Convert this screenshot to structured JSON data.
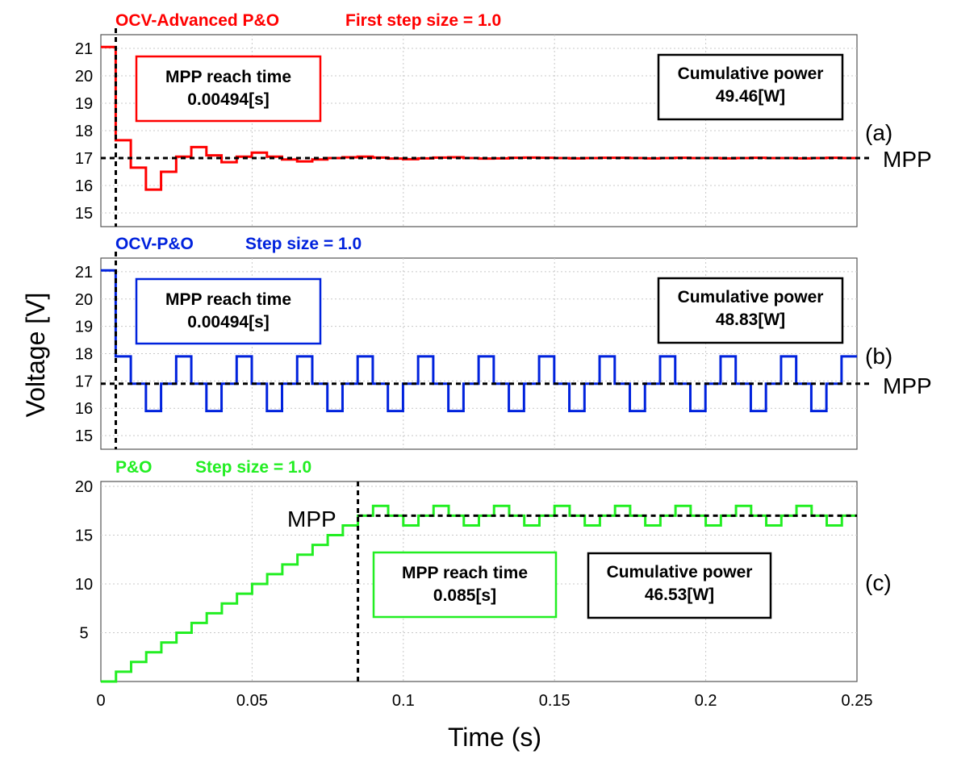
{
  "y_axis_label": "Voltage [V]",
  "x_axis_label": "Time (s)",
  "mpp_label": "MPP",
  "box_labels": {
    "reach": "MPP reach time",
    "power": "Cumulative power"
  },
  "x_ticks": [
    "0",
    "0.05",
    "0.1",
    "0.15",
    "0.2",
    "0.25"
  ],
  "chart_data": [
    {
      "type": "line",
      "panel_label": "(a)",
      "method": "OCV-Advanced P&O",
      "step_label": "First step size = 1.0",
      "color": "#ff0000",
      "xlim": [
        0,
        0.25
      ],
      "ylim": [
        14.5,
        21.5
      ],
      "y_ticks": [
        15,
        16,
        17,
        18,
        19,
        20,
        21
      ],
      "mpp_voltage": 17,
      "mpp_reach_time_value": 0.00494,
      "mpp_reach_time": "0.00494[s]",
      "cumulative_power": "49.46[W]",
      "series": [
        {
          "x": [
            0,
            0.0049,
            0.0099,
            0.0149,
            0.0199,
            0.0249,
            0.0299,
            0.0349,
            0.0399,
            0.0449,
            0.0499,
            0.0549,
            0.0599,
            0.0649,
            0.0699,
            0.0749,
            0.0799,
            0.0849,
            0.0899,
            0.0949,
            0.0999,
            0.1049,
            0.1099,
            0.1149,
            0.1199,
            0.1249,
            0.1299,
            0.1349,
            0.1399,
            0.1449,
            0.1499,
            0.1549,
            0.1599,
            0.1649,
            0.1699,
            0.1749,
            0.1799,
            0.1849,
            0.1899,
            0.1949,
            0.1999,
            0.2049,
            0.2099,
            0.2149,
            0.2199,
            0.2249,
            0.2299,
            0.2349,
            0.2399,
            0.2449
          ],
          "values": [
            21.05,
            17.65,
            16.65,
            15.85,
            16.5,
            17.05,
            17.4,
            17.1,
            16.85,
            17.05,
            17.2,
            17.05,
            16.95,
            16.88,
            16.95,
            17.0,
            17.03,
            17.05,
            17.02,
            16.98,
            16.96,
            16.99,
            17.02,
            17.03,
            17.0,
            16.98,
            16.99,
            17.01,
            17.02,
            17.01,
            17.0,
            16.99,
            17.0,
            17.01,
            17.01,
            17.0,
            16.99,
            17.0,
            17.01,
            17.0,
            17.0,
            16.99,
            17.0,
            17.01,
            17.0,
            17.0,
            16.99,
            17.0,
            17.01,
            17.0
          ]
        }
      ]
    },
    {
      "type": "line",
      "panel_label": "(b)",
      "method": "OCV-P&O",
      "step_label": "Step size = 1.0",
      "color": "#0022dd",
      "xlim": [
        0,
        0.25
      ],
      "ylim": [
        14.5,
        21.5
      ],
      "y_ticks": [
        15,
        16,
        17,
        18,
        19,
        20,
        21
      ],
      "mpp_voltage": 16.9,
      "mpp_reach_time_value": 0.00494,
      "mpp_reach_time": "0.00494[s]",
      "cumulative_power": "48.83[W]",
      "series": [
        {
          "x": [
            0,
            0.0049,
            0.0099,
            0.0149,
            0.0199,
            0.0249,
            0.0299,
            0.0349,
            0.0399,
            0.0449,
            0.0499,
            0.0549,
            0.0599,
            0.0649,
            0.0699,
            0.0749,
            0.0799,
            0.0849,
            0.0899,
            0.0949,
            0.0999,
            0.1049,
            0.1099,
            0.1149,
            0.1199,
            0.1249,
            0.1299,
            0.1349,
            0.1399,
            0.1449,
            0.1499,
            0.1549,
            0.1599,
            0.1649,
            0.1699,
            0.1749,
            0.1799,
            0.1849,
            0.1899,
            0.1949,
            0.1999,
            0.2049,
            0.2099,
            0.2149,
            0.2199,
            0.2249,
            0.2299,
            0.2349,
            0.2399,
            0.2449
          ],
          "values": [
            21.05,
            17.9,
            16.9,
            15.9,
            16.9,
            17.9,
            16.9,
            15.9,
            16.9,
            17.9,
            16.9,
            15.9,
            16.9,
            17.9,
            16.9,
            15.9,
            16.9,
            17.9,
            16.9,
            15.9,
            16.9,
            17.9,
            16.9,
            15.9,
            16.9,
            17.9,
            16.9,
            15.9,
            16.9,
            17.9,
            16.9,
            15.9,
            16.9,
            17.9,
            16.9,
            15.9,
            16.9,
            17.9,
            16.9,
            15.9,
            16.9,
            17.9,
            16.9,
            15.9,
            16.9,
            17.9,
            16.9,
            15.9,
            16.9,
            17.9
          ]
        }
      ]
    },
    {
      "type": "line",
      "panel_label": "(c)",
      "method": "P&O",
      "step_label": "Step size = 1.0",
      "color": "#22ee22",
      "xlim": [
        0,
        0.25
      ],
      "ylim": [
        0,
        20.5
      ],
      "y_ticks": [
        5,
        10,
        15,
        20
      ],
      "mpp_voltage": 17,
      "mpp_reach_time_value": 0.085,
      "mpp_reach_time": "0.085[s]",
      "cumulative_power": "46.53[W]",
      "series": [
        {
          "x": [
            0,
            0.005,
            0.01,
            0.015,
            0.02,
            0.025,
            0.03,
            0.035,
            0.04,
            0.045,
            0.05,
            0.055,
            0.06,
            0.065,
            0.07,
            0.075,
            0.08,
            0.085,
            0.09,
            0.095,
            0.1,
            0.105,
            0.11,
            0.115,
            0.12,
            0.125,
            0.13,
            0.135,
            0.14,
            0.145,
            0.15,
            0.155,
            0.16,
            0.165,
            0.17,
            0.175,
            0.18,
            0.185,
            0.19,
            0.195,
            0.2,
            0.205,
            0.21,
            0.215,
            0.22,
            0.225,
            0.23,
            0.235,
            0.24,
            0.245
          ],
          "values": [
            0,
            1,
            2,
            3,
            4,
            5,
            6,
            7,
            8,
            9,
            10,
            11,
            12,
            13,
            14,
            15,
            16,
            17,
            18,
            17,
            16,
            17,
            18,
            17,
            16,
            17,
            18,
            17,
            16,
            17,
            18,
            17,
            16,
            17,
            18,
            17,
            16,
            17,
            18,
            17,
            16,
            17,
            18,
            17,
            16,
            17,
            18,
            17,
            16,
            17
          ]
        }
      ]
    }
  ]
}
